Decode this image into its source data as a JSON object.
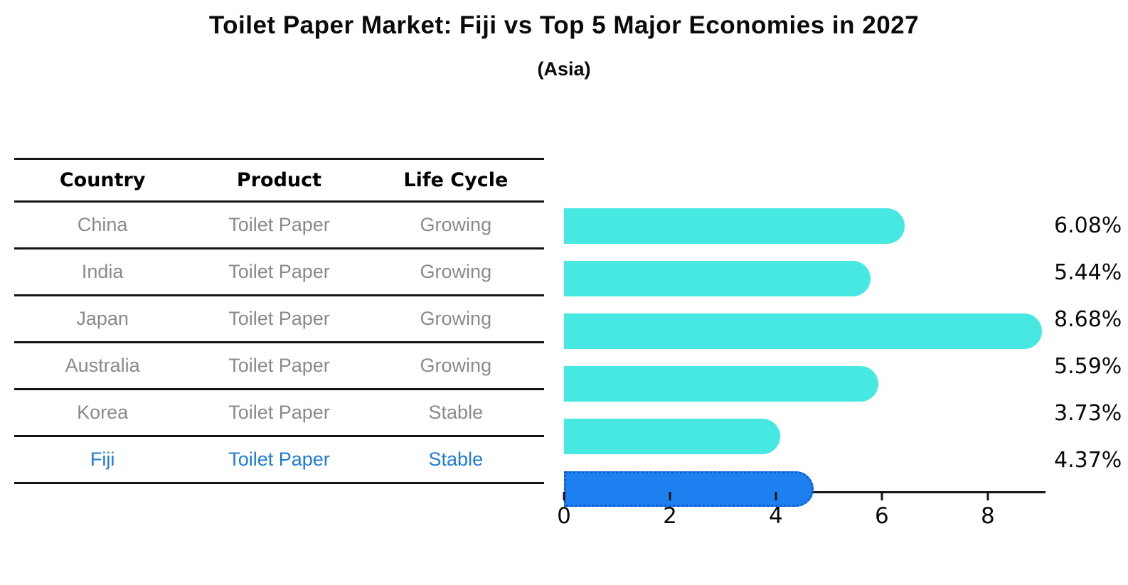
{
  "title": "Toilet Paper Market: Fiji vs Top 5 Major Economies in 2027",
  "subtitle": "(Asia)",
  "table": {
    "headers": [
      "Country",
      "Product",
      "Life Cycle"
    ],
    "rows": [
      {
        "country": "China",
        "product": "Toilet Paper",
        "life_cycle": "Growing",
        "highlight": false
      },
      {
        "country": "India",
        "product": "Toilet Paper",
        "life_cycle": "Growing",
        "highlight": false
      },
      {
        "country": "Japan",
        "product": "Toilet Paper",
        "life_cycle": "Growing",
        "highlight": false
      },
      {
        "country": "Australia",
        "product": "Toilet Paper",
        "life_cycle": "Growing",
        "highlight": false
      },
      {
        "country": "Korea",
        "product": "Toilet Paper",
        "life_cycle": "Stable",
        "highlight": false
      },
      {
        "country": "Fiji",
        "product": "Toilet Paper",
        "life_cycle": "Stable",
        "highlight": true
      }
    ]
  },
  "chart_data": {
    "type": "bar",
    "orientation": "horizontal",
    "title": "Toilet Paper Market: Fiji vs Top 5 Major Economies in 2027",
    "subtitle": "(Asia)",
    "categories": [
      "China",
      "India",
      "Japan",
      "Australia",
      "Korea",
      "Fiji"
    ],
    "values": [
      6.08,
      5.44,
      8.68,
      5.59,
      3.73,
      4.37
    ],
    "value_labels": [
      "6.08%",
      "5.44%",
      "8.68%",
      "5.59%",
      "3.73%",
      "4.37%"
    ],
    "x_ticks": [
      0,
      2,
      4,
      6,
      8
    ],
    "xlim": [
      0,
      9.09
    ],
    "grid": false,
    "legend": false,
    "highlight_index": 5,
    "colors": {
      "bar": "#48e8e2",
      "highlight_bar": "#1e80f0",
      "highlight_bar_border": "#0d5ecc",
      "highlight_row_text": "#1f7cd6",
      "row_text": "#8a8a8a",
      "header_text": "#000000",
      "axis": "#141414"
    }
  }
}
